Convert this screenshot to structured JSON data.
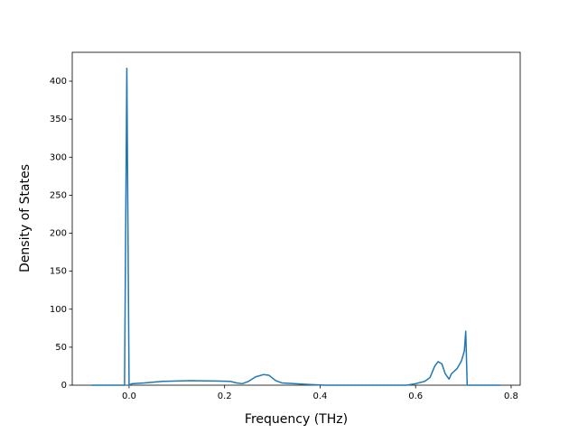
{
  "chart_data": {
    "type": "line",
    "x_label": "Frequency (THz)",
    "y_label": "Density of States",
    "x": [
      -0.079,
      -0.0095,
      -0.0047,
      0.0,
      0.006,
      0.032,
      0.07,
      0.127,
      0.184,
      0.212,
      0.225,
      0.237,
      0.25,
      0.265,
      0.282,
      0.293,
      0.307,
      0.32,
      0.373,
      0.411,
      0.581,
      0.6,
      0.619,
      0.63,
      0.64,
      0.647,
      0.655,
      0.662,
      0.67,
      0.675,
      0.687,
      0.696,
      0.702,
      0.705,
      0.708,
      0.778
    ],
    "series": [
      {
        "color": "#1f77b4",
        "values": [
          0,
          0,
          417,
          0,
          2,
          3,
          5,
          6,
          5.5,
          5,
          3,
          2,
          5,
          11,
          14,
          13,
          6,
          3,
          1,
          0,
          0,
          2,
          5,
          10,
          25,
          31,
          28,
          15,
          8,
          15,
          22,
          32,
          45,
          71,
          0,
          0
        ]
      }
    ],
    "xlim": [
      -0.119,
      0.819
    ],
    "ylim": [
      0,
      438
    ],
    "xticks": [
      {
        "value": 0,
        "label": "0.0"
      },
      0.2,
      0.4,
      0.6,
      0.8
    ],
    "yticks": [
      0,
      50,
      100,
      150,
      200,
      250,
      300,
      350,
      400
    ]
  }
}
